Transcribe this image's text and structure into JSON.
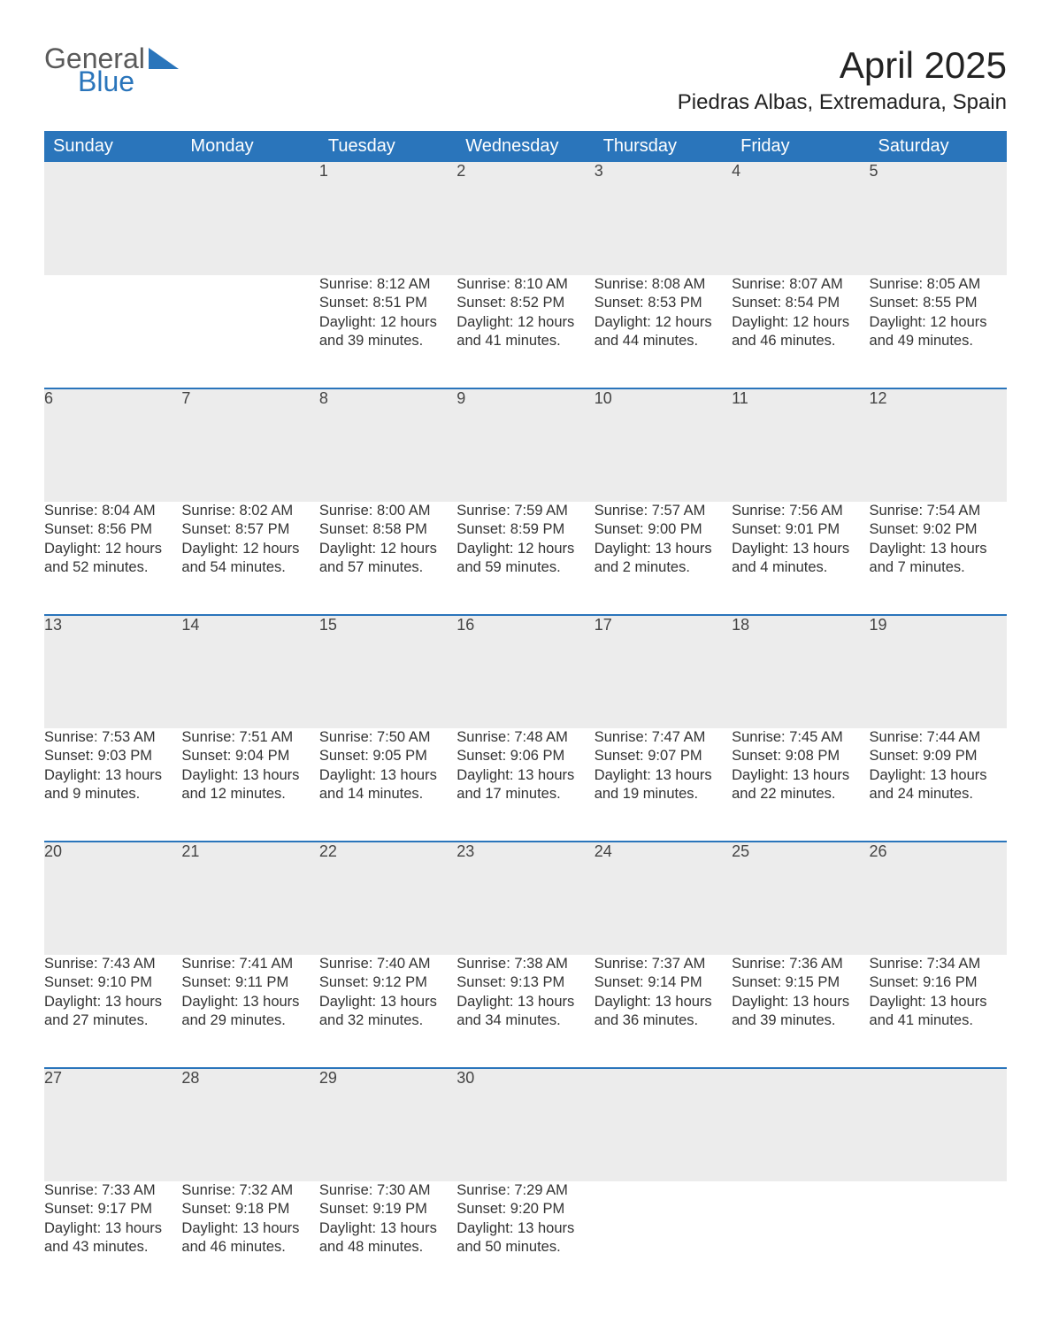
{
  "brand": {
    "line1": "General",
    "line2": "Blue",
    "logo_color": "#2a75bb",
    "text_color": "#5a5a5a"
  },
  "title": "April 2025",
  "location": "Piedras Albas, Extremadura, Spain",
  "colors": {
    "header_bg": "#2a75bb",
    "header_text": "#ffffff",
    "daynum_bg": "#ececec",
    "row_border": "#2a75bb",
    "body_text": "#333333"
  },
  "weekdays": [
    "Sunday",
    "Monday",
    "Tuesday",
    "Wednesday",
    "Thursday",
    "Friday",
    "Saturday"
  ],
  "weeks": [
    [
      null,
      null,
      {
        "n": "1",
        "sr": "8:12 AM",
        "ss": "8:51 PM",
        "dl": "12 hours and 39 minutes."
      },
      {
        "n": "2",
        "sr": "8:10 AM",
        "ss": "8:52 PM",
        "dl": "12 hours and 41 minutes."
      },
      {
        "n": "3",
        "sr": "8:08 AM",
        "ss": "8:53 PM",
        "dl": "12 hours and 44 minutes."
      },
      {
        "n": "4",
        "sr": "8:07 AM",
        "ss": "8:54 PM",
        "dl": "12 hours and 46 minutes."
      },
      {
        "n": "5",
        "sr": "8:05 AM",
        "ss": "8:55 PM",
        "dl": "12 hours and 49 minutes."
      }
    ],
    [
      {
        "n": "6",
        "sr": "8:04 AM",
        "ss": "8:56 PM",
        "dl": "12 hours and 52 minutes."
      },
      {
        "n": "7",
        "sr": "8:02 AM",
        "ss": "8:57 PM",
        "dl": "12 hours and 54 minutes."
      },
      {
        "n": "8",
        "sr": "8:00 AM",
        "ss": "8:58 PM",
        "dl": "12 hours and 57 minutes."
      },
      {
        "n": "9",
        "sr": "7:59 AM",
        "ss": "8:59 PM",
        "dl": "12 hours and 59 minutes."
      },
      {
        "n": "10",
        "sr": "7:57 AM",
        "ss": "9:00 PM",
        "dl": "13 hours and 2 minutes."
      },
      {
        "n": "11",
        "sr": "7:56 AM",
        "ss": "9:01 PM",
        "dl": "13 hours and 4 minutes."
      },
      {
        "n": "12",
        "sr": "7:54 AM",
        "ss": "9:02 PM",
        "dl": "13 hours and 7 minutes."
      }
    ],
    [
      {
        "n": "13",
        "sr": "7:53 AM",
        "ss": "9:03 PM",
        "dl": "13 hours and 9 minutes."
      },
      {
        "n": "14",
        "sr": "7:51 AM",
        "ss": "9:04 PM",
        "dl": "13 hours and 12 minutes."
      },
      {
        "n": "15",
        "sr": "7:50 AM",
        "ss": "9:05 PM",
        "dl": "13 hours and 14 minutes."
      },
      {
        "n": "16",
        "sr": "7:48 AM",
        "ss": "9:06 PM",
        "dl": "13 hours and 17 minutes."
      },
      {
        "n": "17",
        "sr": "7:47 AM",
        "ss": "9:07 PM",
        "dl": "13 hours and 19 minutes."
      },
      {
        "n": "18",
        "sr": "7:45 AM",
        "ss": "9:08 PM",
        "dl": "13 hours and 22 minutes."
      },
      {
        "n": "19",
        "sr": "7:44 AM",
        "ss": "9:09 PM",
        "dl": "13 hours and 24 minutes."
      }
    ],
    [
      {
        "n": "20",
        "sr": "7:43 AM",
        "ss": "9:10 PM",
        "dl": "13 hours and 27 minutes."
      },
      {
        "n": "21",
        "sr": "7:41 AM",
        "ss": "9:11 PM",
        "dl": "13 hours and 29 minutes."
      },
      {
        "n": "22",
        "sr": "7:40 AM",
        "ss": "9:12 PM",
        "dl": "13 hours and 32 minutes."
      },
      {
        "n": "23",
        "sr": "7:38 AM",
        "ss": "9:13 PM",
        "dl": "13 hours and 34 minutes."
      },
      {
        "n": "24",
        "sr": "7:37 AM",
        "ss": "9:14 PM",
        "dl": "13 hours and 36 minutes."
      },
      {
        "n": "25",
        "sr": "7:36 AM",
        "ss": "9:15 PM",
        "dl": "13 hours and 39 minutes."
      },
      {
        "n": "26",
        "sr": "7:34 AM",
        "ss": "9:16 PM",
        "dl": "13 hours and 41 minutes."
      }
    ],
    [
      {
        "n": "27",
        "sr": "7:33 AM",
        "ss": "9:17 PM",
        "dl": "13 hours and 43 minutes."
      },
      {
        "n": "28",
        "sr": "7:32 AM",
        "ss": "9:18 PM",
        "dl": "13 hours and 46 minutes."
      },
      {
        "n": "29",
        "sr": "7:30 AM",
        "ss": "9:19 PM",
        "dl": "13 hours and 48 minutes."
      },
      {
        "n": "30",
        "sr": "7:29 AM",
        "ss": "9:20 PM",
        "dl": "13 hours and 50 minutes."
      },
      null,
      null,
      null
    ]
  ],
  "labels": {
    "sunrise": "Sunrise: ",
    "sunset": "Sunset: ",
    "daylight": "Daylight: "
  }
}
